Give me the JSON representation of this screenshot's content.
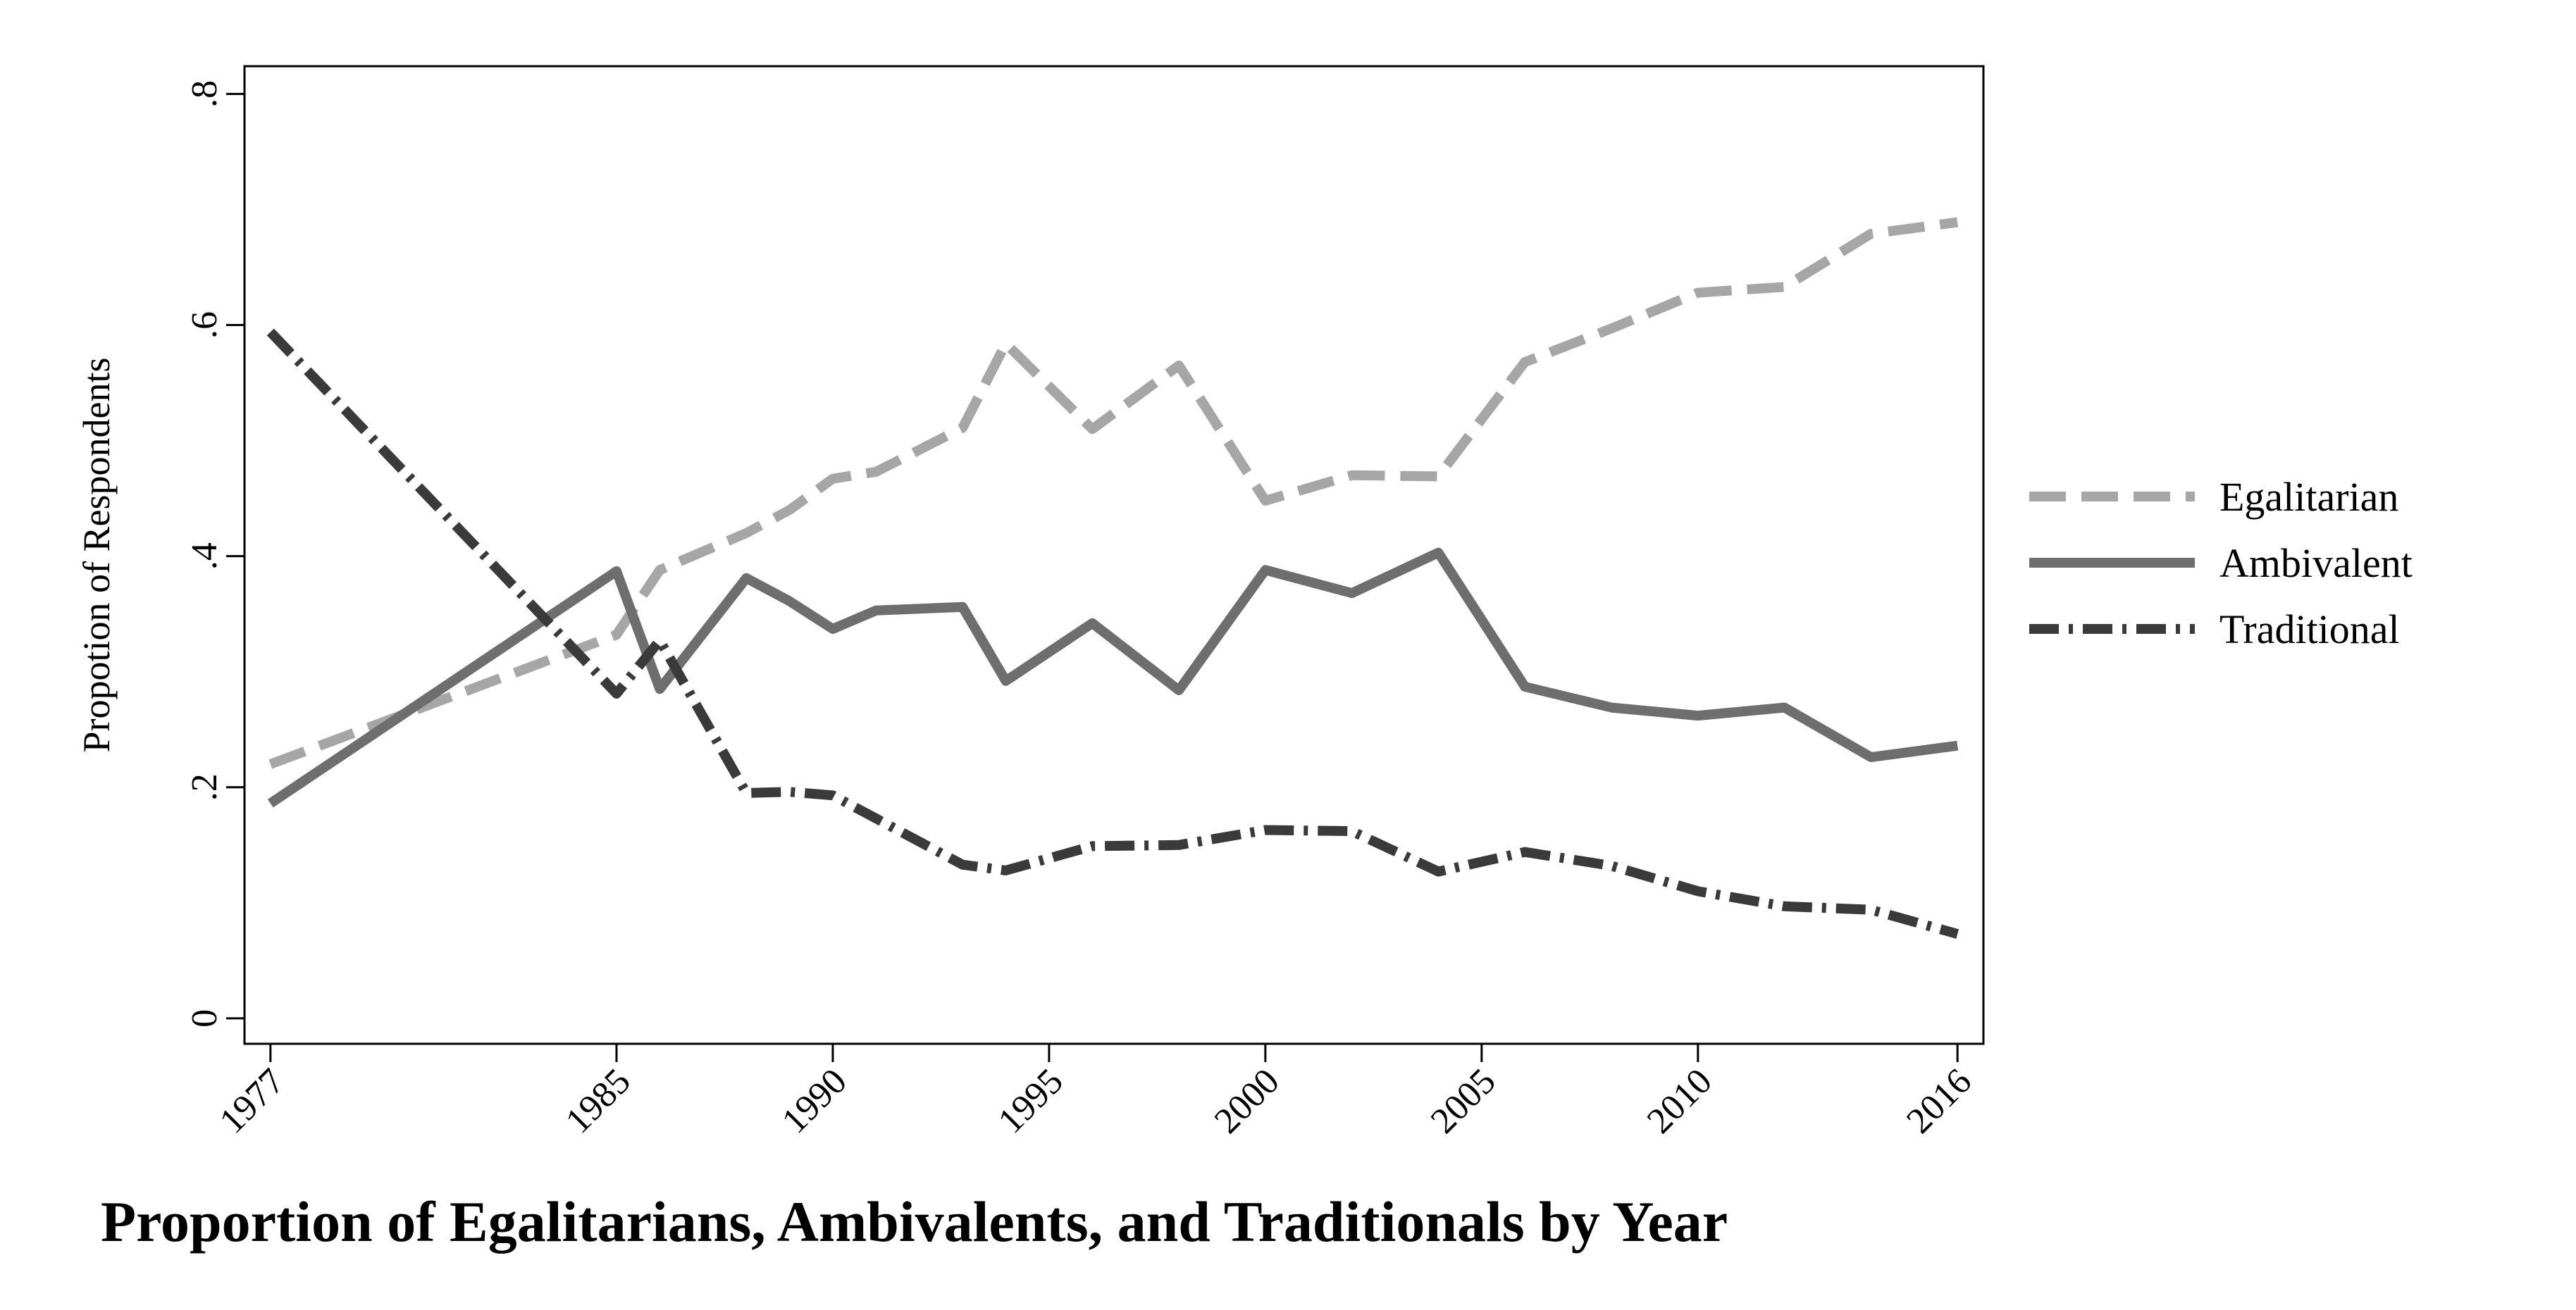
{
  "chart_data": {
    "type": "line",
    "title": "Proportion of Egalitarians, Ambivalents, and Traditionals by Year",
    "xlabel": "",
    "ylabel": "Propotion of Respondents",
    "x_ticks": [
      1977,
      1985,
      1990,
      1995,
      2000,
      2005,
      2010,
      2016
    ],
    "x_tick_labels": [
      "1977",
      "1985",
      "1990",
      "1995",
      "2000",
      "2005",
      "2010",
      "2016"
    ],
    "y_ticks": [
      0,
      0.2,
      0.4,
      0.6,
      0.8
    ],
    "y_tick_labels": [
      "0",
      ".2",
      ".4",
      ".6",
      ".8"
    ],
    "xlim": [
      1976.4,
      2016.6
    ],
    "ylim": [
      -0.022,
      0.824
    ],
    "grid": false,
    "legend_position": "right",
    "x": [
      1977,
      1985,
      1986,
      1988,
      1989,
      1990,
      1991,
      1993,
      1994,
      1996,
      1998,
      2000,
      2002,
      2004,
      2006,
      2008,
      2010,
      2012,
      2014,
      2016
    ],
    "series": [
      {
        "name": "Egalitarian",
        "color": "#a6a6a6",
        "dash": "dash",
        "values": [
          0.22,
          0.332,
          0.388,
          0.42,
          0.44,
          0.467,
          0.473,
          0.511,
          0.584,
          0.51,
          0.565,
          0.448,
          0.47,
          0.469,
          0.568,
          0.597,
          0.628,
          0.633,
          0.679,
          0.689
        ]
      },
      {
        "name": "Ambivalent",
        "color": "#6e6e6e",
        "dash": "solid",
        "values": [
          0.186,
          0.387,
          0.285,
          0.381,
          0.361,
          0.337,
          0.353,
          0.356,
          0.292,
          0.342,
          0.284,
          0.388,
          0.368,
          0.403,
          0.287,
          0.269,
          0.262,
          0.269,
          0.226,
          0.236
        ]
      },
      {
        "name": "Traditional",
        "color": "#3a3a3a",
        "dash": "dashdot",
        "values": [
          0.594,
          0.281,
          0.327,
          0.195,
          0.196,
          0.193,
          0.173,
          0.133,
          0.128,
          0.149,
          0.15,
          0.163,
          0.162,
          0.127,
          0.144,
          0.132,
          0.11,
          0.097,
          0.094,
          0.073
        ]
      }
    ]
  }
}
